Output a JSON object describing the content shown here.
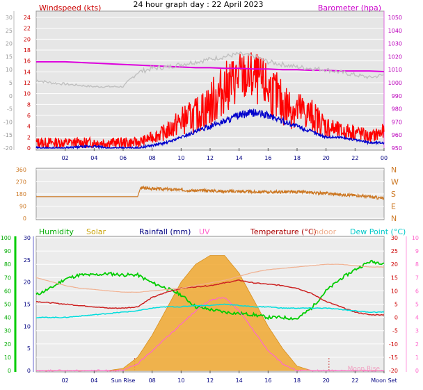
{
  "title": "24 hour graph day : 22 April 2023",
  "wind_panel": {
    "left_label": "Windspeed (kts)",
    "right_label": "Barometer (hpa)",
    "outer_left_ticks": [
      "30",
      "25",
      "20",
      "15",
      "10",
      "5",
      "0",
      "-5",
      "-10",
      "-15",
      "-20"
    ],
    "left_ticks": [
      "24",
      "22",
      "20",
      "18",
      "16",
      "14",
      "12",
      "10",
      "8",
      "6",
      "4",
      "2",
      "0"
    ],
    "right_ticks": [
      "1050",
      "1040",
      "1030",
      "1020",
      "1010",
      "1000",
      "990",
      "980",
      "970",
      "960",
      "950"
    ],
    "x_ticks": [
      "02",
      "04",
      "06",
      "08",
      "10",
      "12",
      "14",
      "16",
      "18",
      "20",
      "22",
      "00"
    ]
  },
  "direction_panel": {
    "left_ticks": [
      "360",
      "270",
      "180",
      "90",
      "0"
    ],
    "right_ticks": [
      "N",
      "W",
      "S",
      "E",
      "N"
    ]
  },
  "bottom_panel": {
    "legend": [
      {
        "text": "Humidity",
        "color": "#00aa00"
      },
      {
        "text": "Solar",
        "color": "#c8a000"
      },
      {
        "text": "Rainfall (mm)",
        "color": "#000080"
      },
      {
        "text": "UV",
        "color": "#ff66cc"
      },
      {
        "text": "Temperature (°C)",
        "color": "#aa0000"
      },
      {
        "text": "Indoor",
        "color": "#f0b090"
      },
      {
        "text": "Dew Point (°C)",
        "color": "#00c8c8"
      }
    ],
    "humidity_ticks": [
      "100",
      "90",
      "80",
      "70",
      "60",
      "50",
      "40",
      "30",
      "20",
      "10",
      "0"
    ],
    "rain_ticks": [
      "30",
      "25",
      "20",
      "15",
      "10",
      "5",
      "0"
    ],
    "temp_ticks": [
      "30",
      "25",
      "20",
      "15",
      "10",
      "5",
      "0",
      "-5",
      "-10",
      "-15",
      "-20"
    ],
    "uv_ticks": [
      "10",
      "9",
      "8",
      "7",
      "6",
      "5",
      "4",
      "3",
      "2",
      "1",
      "0"
    ],
    "x_ticks": [
      "02",
      "04",
      "Sun Rise",
      "08",
      "10",
      "12",
      "14",
      "16",
      "18",
      "20",
      "22",
      "Moon Set"
    ],
    "moon_rise_label": "Moon Rise"
  },
  "chart_data": [
    {
      "type": "line",
      "xlabel": "",
      "x": [
        0,
        1,
        2,
        3,
        4,
        5,
        6,
        7,
        8,
        9,
        10,
        11,
        12,
        13,
        14,
        15,
        16,
        17,
        18,
        19,
        20,
        21,
        22,
        23,
        24
      ],
      "series": [
        {
          "name": "Windspeed (kts)",
          "color": "#ff0000",
          "axis": "left",
          "values": [
            1,
            1,
            1,
            1,
            1,
            1,
            1,
            1,
            2,
            3,
            5,
            6,
            8,
            11,
            13,
            13,
            11,
            8,
            7,
            6,
            4,
            3,
            3,
            2,
            3
          ]
        },
        {
          "color": "#0000cc",
          "axis": "left",
          "values": [
            0,
            0,
            0,
            0.2,
            0.3,
            0,
            0,
            0,
            0.5,
            1,
            2,
            3,
            4,
            5,
            6,
            6.5,
            6,
            5,
            4,
            3,
            2,
            2,
            1.5,
            1,
            1
          ]
        },
        {
          "name": "Barometer (hpa)",
          "color": "#dd00dd",
          "axis": "right",
          "values": [
            1016,
            1016,
            1016,
            1015.5,
            1015,
            1014.5,
            1014,
            1013.5,
            1013,
            1012.5,
            1012,
            1011.5,
            1011.5,
            1011,
            1011,
            1010.5,
            1010.5,
            1010,
            1010,
            1009.5,
            1009.5,
            1009,
            1009,
            1009,
            1008.5
          ]
        },
        {
          "color": "#c0c0c0",
          "axis": "outer",
          "values": [
            6,
            5,
            4.5,
            4,
            3.5,
            3.5,
            3.5,
            9,
            10.5,
            11,
            12,
            13,
            14,
            15,
            16,
            15,
            13,
            12,
            11,
            10.5,
            10,
            9,
            8,
            7,
            8
          ]
        }
      ],
      "ylim_left": [
        0,
        24
      ],
      "ylim_right": [
        950,
        1050
      ],
      "ylim_outer": [
        -20,
        30
      ]
    },
    {
      "type": "line",
      "x": [
        0,
        1,
        2,
        3,
        4,
        5,
        6,
        7,
        7.2,
        8,
        9,
        10,
        11,
        12,
        13,
        14,
        15,
        16,
        17,
        18,
        19,
        20,
        21,
        22,
        23,
        24
      ],
      "series": [
        {
          "color": "#cc7722",
          "values": [
            160,
            160,
            160,
            160,
            160,
            160,
            160,
            160,
            225,
            220,
            215,
            210,
            205,
            205,
            200,
            200,
            195,
            195,
            195,
            195,
            190,
            185,
            175,
            170,
            160,
            145
          ]
        }
      ],
      "ylim": [
        0,
        360
      ]
    },
    {
      "type": "area",
      "x": [
        0,
        1,
        2,
        3,
        4,
        5,
        6,
        7,
        8,
        9,
        10,
        11,
        12,
        13,
        14,
        15,
        16,
        17,
        18,
        19,
        20,
        21,
        22,
        23,
        24
      ],
      "series": [
        {
          "name": "Humidity",
          "color": "#00cc00",
          "axis": "humidity",
          "values": [
            57,
            62,
            69,
            72,
            72,
            73,
            72,
            72,
            66,
            62,
            57,
            48,
            46,
            44,
            43,
            42,
            40,
            40,
            39,
            47,
            60,
            69,
            76,
            82,
            81
          ]
        },
        {
          "name": "Solar",
          "color": "#f0a830",
          "axis": "solar",
          "values": [
            0,
            0,
            0,
            0,
            0,
            0,
            0.5,
            3,
            8,
            14,
            20,
            24,
            26,
            26,
            22,
            16,
            10,
            5,
            1,
            0,
            0,
            0,
            0,
            0,
            0
          ]
        },
        {
          "name": "UV",
          "color": "#ff66cc",
          "axis": "uv",
          "values": [
            0,
            0,
            0,
            0,
            0,
            0,
            0,
            0.5,
            1.5,
            2.5,
            3.5,
            4.5,
            5.3,
            5.5,
            4.5,
            3,
            1.5,
            0.5,
            0,
            0,
            0,
            0,
            0,
            0,
            0
          ]
        },
        {
          "name": "Temperature (°C)",
          "color": "#cc2222",
          "axis": "temp",
          "values": [
            6,
            5.5,
            5,
            4.5,
            4,
            3.5,
            3.5,
            4,
            7.5,
            9.5,
            11,
            11.5,
            12,
            13,
            14,
            13,
            12.5,
            12,
            11,
            9,
            6,
            4,
            2,
            1,
            1
          ]
        },
        {
          "name": "Indoor",
          "color": "#f0b090",
          "axis": "temp",
          "values": [
            15,
            13.5,
            12,
            11,
            10.5,
            10,
            9.5,
            9.5,
            10,
            10.5,
            11,
            12,
            13,
            14,
            15.5,
            17,
            18,
            18.5,
            19,
            19.5,
            20,
            20,
            19.5,
            19,
            19
          ]
        },
        {
          "name": "Dew Point (°C)",
          "color": "#00dddd",
          "axis": "temp",
          "values": [
            0,
            0,
            0,
            0.5,
            1,
            1.5,
            2,
            2.5,
            3.5,
            4,
            4,
            4.5,
            4.5,
            5,
            4.5,
            4,
            4,
            3.5,
            3.5,
            3.5,
            3.5,
            3,
            2.5,
            2,
            2
          ]
        }
      ],
      "ylim_humidity": [
        0,
        100
      ],
      "ylim_temp": [
        -20,
        30
      ],
      "ylim_uv": [
        0,
        10
      ],
      "ylim_solar": [
        0,
        30
      ]
    }
  ]
}
